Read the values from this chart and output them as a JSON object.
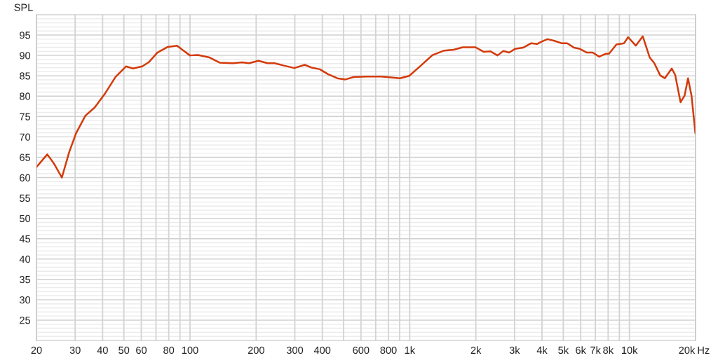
{
  "chart_data": {
    "type": "line",
    "ylabel": "SPL",
    "log": "x",
    "grid": true,
    "marker": "none",
    "line_style": "solid",
    "xlim": [
      20,
      20000
    ],
    "ylim": [
      20,
      100
    ],
    "xticks": [
      20,
      30,
      40,
      50,
      60,
      {
        "value": 70,
        "label": null
      },
      80,
      {
        "value": 90,
        "label": null
      },
      100,
      200,
      300,
      400,
      {
        "value": 500,
        "label": null
      },
      600,
      {
        "value": 700,
        "label": null
      },
      800,
      {
        "value": 900,
        "label": null
      },
      {
        "value": 1000,
        "label": "1k"
      },
      {
        "value": 2000,
        "label": "2k"
      },
      {
        "value": 3000,
        "label": "3k"
      },
      {
        "value": 4000,
        "label": "4k"
      },
      {
        "value": 5000,
        "label": "5k"
      },
      {
        "value": 6000,
        "label": "6k"
      },
      {
        "value": 7000,
        "label": "7k"
      },
      {
        "value": 8000,
        "label": "8k"
      },
      {
        "value": 9000,
        "label": null
      },
      {
        "value": 10000,
        "label": "10k"
      },
      {
        "value": 20000,
        "label": "20k"
      }
    ],
    "xlabel": "Hz",
    "yticks": [
      {
        "value": 21,
        "label": null
      },
      {
        "value": 22,
        "label": null
      },
      {
        "value": 23,
        "label": null
      },
      {
        "value": 24,
        "label": null
      },
      25,
      {
        "value": 26,
        "label": null
      },
      {
        "value": 27,
        "label": null
      },
      {
        "value": 28,
        "label": null
      },
      {
        "value": 29,
        "label": null
      },
      30,
      {
        "value": 31,
        "label": null
      },
      {
        "value": 32,
        "label": null
      },
      {
        "value": 33,
        "label": null
      },
      {
        "value": 34,
        "label": null
      },
      35,
      {
        "value": 36,
        "label": null
      },
      {
        "value": 37,
        "label": null
      },
      {
        "value": 38,
        "label": null
      },
      {
        "value": 39,
        "label": null
      },
      40,
      {
        "value": 41,
        "label": null
      },
      {
        "value": 42,
        "label": null
      },
      {
        "value": 43,
        "label": null
      },
      {
        "value": 44,
        "label": null
      },
      45,
      {
        "value": 46,
        "label": null
      },
      {
        "value": 47,
        "label": null
      },
      {
        "value": 48,
        "label": null
      },
      {
        "value": 49,
        "label": null
      },
      50,
      {
        "value": 51,
        "label": null
      },
      {
        "value": 52,
        "label": null
      },
      {
        "value": 53,
        "label": null
      },
      {
        "value": 54,
        "label": null
      },
      55,
      {
        "value": 56,
        "label": null
      },
      {
        "value": 57,
        "label": null
      },
      {
        "value": 58,
        "label": null
      },
      {
        "value": 59,
        "label": null
      },
      60,
      {
        "value": 61,
        "label": null
      },
      {
        "value": 62,
        "label": null
      },
      {
        "value": 63,
        "label": null
      },
      {
        "value": 64,
        "label": null
      },
      65,
      {
        "value": 66,
        "label": null
      },
      {
        "value": 67,
        "label": null
      },
      {
        "value": 68,
        "label": null
      },
      {
        "value": 69,
        "label": null
      },
      70,
      {
        "value": 71,
        "label": null
      },
      {
        "value": 72,
        "label": null
      },
      {
        "value": 73,
        "label": null
      },
      {
        "value": 74,
        "label": null
      },
      75,
      {
        "value": 76,
        "label": null
      },
      {
        "value": 77,
        "label": null
      },
      {
        "value": 78,
        "label": null
      },
      {
        "value": 79,
        "label": null
      },
      80,
      {
        "value": 81,
        "label": null
      },
      {
        "value": 82,
        "label": null
      },
      {
        "value": 83,
        "label": null
      },
      {
        "value": 84,
        "label": null
      },
      85,
      {
        "value": 86,
        "label": null
      },
      {
        "value": 87,
        "label": null
      },
      {
        "value": 88,
        "label": null
      },
      {
        "value": 89,
        "label": null
      },
      90,
      {
        "value": 91,
        "label": null
      },
      {
        "value": 92,
        "label": null
      },
      {
        "value": 93,
        "label": null
      },
      {
        "value": 94,
        "label": null
      },
      95,
      {
        "value": 96,
        "label": null
      },
      {
        "value": 97,
        "label": null
      },
      {
        "value": 98,
        "label": null
      },
      {
        "value": 99,
        "label": null
      }
    ],
    "series": [
      {
        "color": "#d43a0a",
        "x": [
          20,
          22.4,
          24.0,
          26.1,
          28.2,
          30.3,
          33.4,
          36.8,
          41.1,
          45.8,
          51.1,
          55.0,
          60.6,
          65.1,
          71.0,
          79.2,
          87.3,
          92.7,
          100,
          108.6,
          122.7,
          136.9,
          156.4,
          172.5,
          185.6,
          205,
          225.5,
          242.7,
          267.5,
          298.5,
          332.8,
          357.9,
          389.9,
          424.6,
          468,
          509.6,
          555,
          642,
          743,
          819,
          903,
          995,
          1124,
          1270,
          1435,
          1582,
          1743,
          1994,
          2168,
          2333,
          2510,
          2668,
          2835,
          3013,
          3281,
          3573,
          3796,
          3987,
          4236,
          4556,
          4902,
          5208,
          5603,
          5954,
          6405,
          6802,
          7284,
          7782,
          8072,
          8725,
          9461,
          9863,
          10689,
          11503,
          12370,
          12984,
          13806,
          14488,
          15588,
          16153,
          17093,
          17819,
          18483,
          19173,
          19960
        ],
        "values": [
          62.6,
          65.7,
          63.5,
          60.0,
          66.3,
          70.9,
          75.2,
          77.2,
          80.7,
          84.7,
          87.3,
          86.8,
          87.3,
          88.4,
          90.7,
          92.1,
          92.4,
          91.3,
          90.0,
          90.1,
          89.5,
          88.2,
          88.1,
          88.3,
          88.1,
          88.7,
          88.1,
          88.1,
          87.5,
          86.9,
          87.7,
          87.0,
          86.6,
          85.4,
          84.4,
          84.1,
          84.7,
          84.8,
          84.8,
          84.6,
          84.4,
          85.0,
          87.5,
          90.1,
          91.2,
          91.4,
          92.0,
          92.0,
          90.9,
          91.0,
          90.0,
          91.1,
          90.7,
          91.6,
          91.9,
          93.0,
          92.8,
          93.4,
          94.0,
          93.6,
          93.0,
          93.0,
          91.9,
          91.6,
          90.7,
          90.7,
          89.7,
          90.4,
          90.4,
          92.7,
          93.0,
          94.5,
          92.4,
          94.7,
          89.5,
          88.1,
          85.1,
          84.4,
          86.8,
          85.2,
          78.5,
          80.1,
          84.4,
          80.1,
          70.9
        ]
      }
    ]
  }
}
